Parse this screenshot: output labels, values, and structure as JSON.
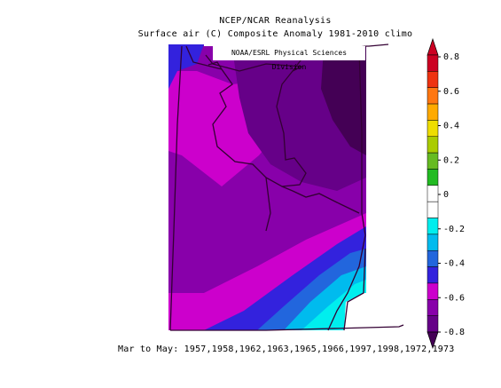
{
  "title_line1": "NCEP/NCAR Reanalysis",
  "title_line2": "Surface air (C) Composite Anomaly 1981-2010 climo",
  "credit": "NOAA/ESRL Physical Sciences Division",
  "period_text": "Mar to May: 1957,1958,1962,1963,1965,1966,1997,1998,1972,1973",
  "colorbar": {
    "ticks": [
      "0.8",
      "0.6",
      "0.4",
      "0.2",
      "0",
      "-0.2",
      "-0.4",
      "-0.6",
      "-0.8"
    ],
    "colors": [
      "#cc0022",
      "#ee3311",
      "#ff7711",
      "#ffaa00",
      "#eedd00",
      "#aacc00",
      "#66bb22",
      "#22bb22",
      "#ffffff",
      "#ffffff",
      "#00eeee",
      "#00bbee",
      "#2266dd",
      "#3322dd",
      "#cc00cc",
      "#8800aa",
      "#660088"
    ],
    "min_color": "#440055",
    "max_color": "#cc0022"
  }
}
